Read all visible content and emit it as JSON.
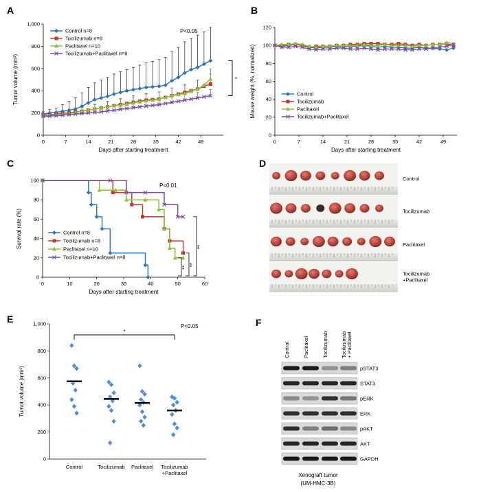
{
  "colors": {
    "control": "#2e75b6",
    "tocilizumab": "#c0392b",
    "paclitaxel": "#8dbf3f",
    "combo": "#7b4fa0",
    "scatter": "#4f8fd1"
  },
  "panels": {
    "A": "A",
    "B": "B",
    "C": "C",
    "D": "D",
    "E": "E",
    "F": "F"
  },
  "chart_data": [
    {
      "panel": "A",
      "type": "line",
      "xlabel": "Days after starting treatment",
      "ylabel": "Tumor volume (mm³)",
      "xlim": [
        0,
        56
      ],
      "ylim": [
        0,
        1000
      ],
      "xticks": [
        0,
        7,
        14,
        21,
        28,
        35,
        42,
        49
      ],
      "yticks": [
        0,
        200,
        400,
        600,
        800,
        1000
      ],
      "ytick_labels": [
        "0",
        "200",
        "400",
        "600",
        "800",
        "1,000"
      ],
      "annotation": "P<0.05",
      "significance": "*",
      "legend_position": "top-left",
      "x": [
        0,
        2,
        4,
        6,
        8,
        10,
        12,
        14,
        16,
        18,
        20,
        22,
        24,
        26,
        28,
        30,
        32,
        34,
        36,
        38,
        40,
        42,
        44,
        46,
        48,
        50,
        52
      ],
      "series": [
        {
          "name": "Control n=8",
          "color_key": "control",
          "marker": "diamond",
          "values": [
            190,
            200,
            205,
            215,
            225,
            235,
            260,
            290,
            320,
            335,
            350,
            370,
            385,
            400,
            410,
            420,
            430,
            435,
            440,
            450,
            490,
            520,
            560,
            590,
            610,
            640,
            670
          ],
          "error": [
            20,
            30,
            40,
            60,
            80,
            100,
            120,
            140,
            150,
            160,
            170,
            180,
            185,
            190,
            200,
            210,
            220,
            230,
            240,
            250,
            260,
            270,
            280,
            280,
            290,
            290,
            300
          ]
        },
        {
          "name": "Tocilizumab n=8",
          "color_key": "tocilizumab",
          "marker": "square",
          "values": [
            180,
            185,
            190,
            195,
            200,
            210,
            215,
            225,
            235,
            245,
            255,
            265,
            275,
            285,
            295,
            305,
            315,
            320,
            325,
            340,
            355,
            370,
            385,
            400,
            415,
            440,
            460
          ],
          "error": [
            15,
            20,
            25,
            30,
            30,
            35,
            40,
            40,
            45,
            45,
            50,
            50,
            55,
            55,
            60,
            60,
            60,
            65,
            65,
            70,
            70,
            75,
            75,
            80,
            80,
            85,
            90
          ]
        },
        {
          "name": "Paclitaxel n=10",
          "color_key": "paclitaxel",
          "marker": "triangle",
          "values": [
            175,
            180,
            185,
            190,
            195,
            205,
            215,
            225,
            235,
            245,
            255,
            265,
            270,
            280,
            290,
            300,
            310,
            315,
            325,
            340,
            355,
            365,
            375,
            395,
            415,
            450,
            505
          ],
          "error": [
            15,
            20,
            20,
            25,
            30,
            30,
            35,
            40,
            40,
            45,
            45,
            50,
            50,
            55,
            55,
            60,
            60,
            60,
            65,
            65,
            70,
            70,
            75,
            75,
            80,
            85,
            90
          ]
        },
        {
          "name": "Tocilizumab+Paclitaxel n=8",
          "color_key": "combo",
          "marker": "x",
          "values": [
            170,
            172,
            175,
            180,
            185,
            190,
            195,
            200,
            205,
            210,
            218,
            225,
            232,
            240,
            248,
            255,
            262,
            268,
            275,
            285,
            295,
            305,
            315,
            325,
            335,
            345,
            355
          ],
          "error": [
            10,
            12,
            15,
            15,
            18,
            20,
            20,
            22,
            25,
            25,
            28,
            30,
            30,
            32,
            35,
            35,
            38,
            40,
            40,
            42,
            45,
            45,
            48,
            50,
            50,
            52,
            55
          ]
        }
      ]
    },
    {
      "panel": "B",
      "type": "line",
      "xlabel": "Days after starting treatment",
      "ylabel": "Mouse weight (%, normalized)",
      "xlim": [
        0,
        53
      ],
      "ylim": [
        0,
        120
      ],
      "xticks": [
        0,
        7,
        14,
        21,
        28,
        35,
        42,
        49
      ],
      "yticks": [
        0,
        20,
        40,
        60,
        80,
        100,
        120
      ],
      "legend_position": "bottom-left",
      "x": [
        0,
        2,
        4,
        6,
        8,
        10,
        12,
        14,
        16,
        18,
        20,
        22,
        24,
        26,
        28,
        30,
        32,
        34,
        36,
        38,
        40,
        42,
        44,
        46,
        48,
        50,
        52
      ],
      "series": [
        {
          "name": "Control",
          "color_key": "control",
          "marker": "diamond",
          "values": [
            100,
            99,
            100,
            101,
            100,
            98,
            97,
            98,
            98,
            99,
            98,
            99,
            99,
            100,
            99,
            98,
            99,
            98,
            98,
            97,
            97,
            98,
            97,
            97,
            96,
            95,
            97
          ]
        },
        {
          "name": "Tocilizumab",
          "color_key": "tocilizumab",
          "marker": "square",
          "values": [
            100,
            100,
            101,
            101,
            100,
            98,
            99,
            99,
            99,
            100,
            100,
            101,
            101,
            102,
            102,
            102,
            101,
            101,
            102,
            101,
            100,
            101,
            100,
            101,
            101,
            102,
            100
          ]
        },
        {
          "name": "Paclitaxel",
          "color_key": "paclitaxel",
          "marker": "triangle",
          "values": [
            100,
            101,
            101,
            102,
            101,
            99,
            98,
            99,
            99,
            100,
            100,
            100,
            100,
            101,
            100,
            100,
            101,
            100,
            100,
            100,
            99,
            100,
            100,
            101,
            101,
            103,
            102
          ]
        },
        {
          "name": "Tocilizumab+Paclitaxel",
          "color_key": "combo",
          "marker": "x",
          "values": [
            100,
            98,
            98,
            99,
            98,
            96,
            95,
            96,
            96,
            97,
            97,
            96,
            96,
            97,
            96,
            95,
            96,
            96,
            96,
            95,
            95,
            96,
            96,
            97,
            98,
            99,
            101
          ]
        }
      ]
    },
    {
      "panel": "C",
      "type": "step",
      "xlabel": "Days after starting treatment",
      "ylabel": "Survival rate (%)",
      "xlim": [
        0,
        60
      ],
      "ylim": [
        0,
        100
      ],
      "xticks": [
        0,
        10,
        20,
        30,
        40,
        50,
        60
      ],
      "yticks": [
        0,
        20,
        40,
        60,
        80,
        100
      ],
      "annotation": "P<0.01",
      "significance": [
        "**",
        "**",
        "**"
      ],
      "legend_position": "bottom-left",
      "series": [
        {
          "name": "Control n=8",
          "color_key": "control",
          "marker": "diamond",
          "x": [
            0,
            17,
            18,
            20,
            22,
            25,
            38,
            39
          ],
          "values": [
            100,
            87.5,
            75,
            62.5,
            50,
            25,
            12.5,
            0
          ]
        },
        {
          "name": "Tocilizumab n=8",
          "color_key": "tocilizumab",
          "marker": "square",
          "x": [
            0,
            26,
            33,
            37,
            45,
            47,
            52
          ],
          "values": [
            100,
            87.5,
            75,
            62.5,
            50,
            37.5,
            25
          ]
        },
        {
          "name": "Paclitaxel n=10",
          "color_key": "paclitaxel",
          "marker": "triangle",
          "x": [
            0,
            21,
            27,
            31,
            38,
            43,
            45,
            47,
            49,
            52
          ],
          "values": [
            100,
            90,
            90,
            80,
            80,
            70,
            50,
            30,
            20,
            20
          ]
        },
        {
          "name": "Tocilizumab+Paclitaxel n=8",
          "color_key": "combo",
          "marker": "x",
          "x": [
            0,
            25,
            31,
            38,
            45,
            50,
            52
          ],
          "values": [
            100,
            100,
            87.5,
            87.5,
            75,
            62.5,
            62.5
          ]
        }
      ]
    },
    {
      "panel": "E",
      "type": "scatter",
      "ylabel": "Tumor volume (mm³)",
      "ylim": [
        0,
        1000
      ],
      "yticks": [
        0,
        200,
        400,
        600,
        800,
        1000
      ],
      "ytick_labels": [
        "0",
        "200",
        "400",
        "600",
        "800",
        "1,000"
      ],
      "annotation": "P<0.05",
      "significance": "*",
      "categories": [
        "Control",
        "Tocilizumab",
        "Paclitaxel",
        "Tocilizumab\n+Paclitaxel"
      ],
      "points": [
        [
          840,
          690,
          670,
          560,
          510,
          440,
          390,
          340
        ],
        [
          570,
          550,
          490,
          460,
          430,
          390,
          360,
          280,
          120
        ],
        [
          690,
          500,
          480,
          440,
          420,
          400,
          350,
          310,
          280,
          250
        ],
        [
          460,
          450,
          420,
          400,
          360,
          330,
          260,
          230,
          180
        ]
      ],
      "means": [
        575,
        445,
        415,
        360
      ]
    }
  ],
  "panelD": {
    "labels": [
      "Control",
      "Tocilizumab",
      "Paclitaxel",
      "Tocilizumab\n+Paclitaxel"
    ],
    "tumor_counts": [
      8,
      8,
      9,
      7
    ]
  },
  "panelF": {
    "lanes": [
      "Control",
      "Paclitaxel",
      "Tocilizumab",
      "Tocilizumab\n+ Paclitaxel"
    ],
    "bands": [
      "pSTAT3",
      "STAT3",
      "pERK",
      "ERK",
      "pAKT",
      "AKT",
      "GAPDH"
    ],
    "caption_line1": "Xenograft tumor",
    "caption_line2": "(UM-HMC-3B)"
  }
}
